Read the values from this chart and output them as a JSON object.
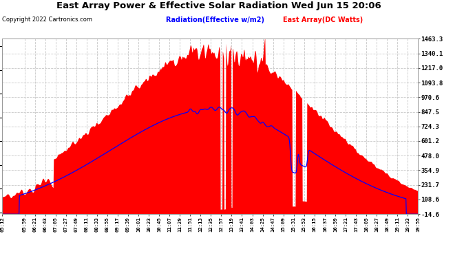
{
  "title": "East Array Power & Effective Solar Radiation Wed Jun 15 20:06",
  "copyright": "Copyright 2022 Cartronics.com",
  "legend_radiation": "Radiation(Effective w/m2)",
  "legend_array": "East Array(DC Watts)",
  "ylabel_right_ticks": [
    1463.3,
    1340.1,
    1217.0,
    1093.8,
    970.6,
    847.5,
    724.3,
    601.2,
    478.0,
    354.9,
    231.7,
    108.6,
    -14.6
  ],
  "y_min": -14.6,
  "y_max": 1463.3,
  "background_color": "#ffffff",
  "plot_bg_color": "#ffffff",
  "grid_color": "#c8c8c8",
  "red_fill_color": "#ff0000",
  "blue_line_color": "#0000ff",
  "title_color": "#000000",
  "copyright_color": "#000000",
  "radiation_legend_color": "#0000ff",
  "array_legend_color": "#ff0000",
  "x_labels": [
    "05:12",
    "05:59",
    "06:21",
    "06:43",
    "07:05",
    "07:27",
    "07:49",
    "08:11",
    "08:33",
    "08:55",
    "09:17",
    "09:39",
    "10:01",
    "10:23",
    "10:45",
    "11:07",
    "11:29",
    "11:51",
    "12:13",
    "12:35",
    "12:57",
    "13:19",
    "13:41",
    "14:03",
    "14:25",
    "14:47",
    "15:09",
    "15:31",
    "15:53",
    "16:15",
    "16:37",
    "16:59",
    "17:21",
    "17:43",
    "18:05",
    "18:27",
    "18:49",
    "19:11",
    "19:33",
    "19:55"
  ]
}
